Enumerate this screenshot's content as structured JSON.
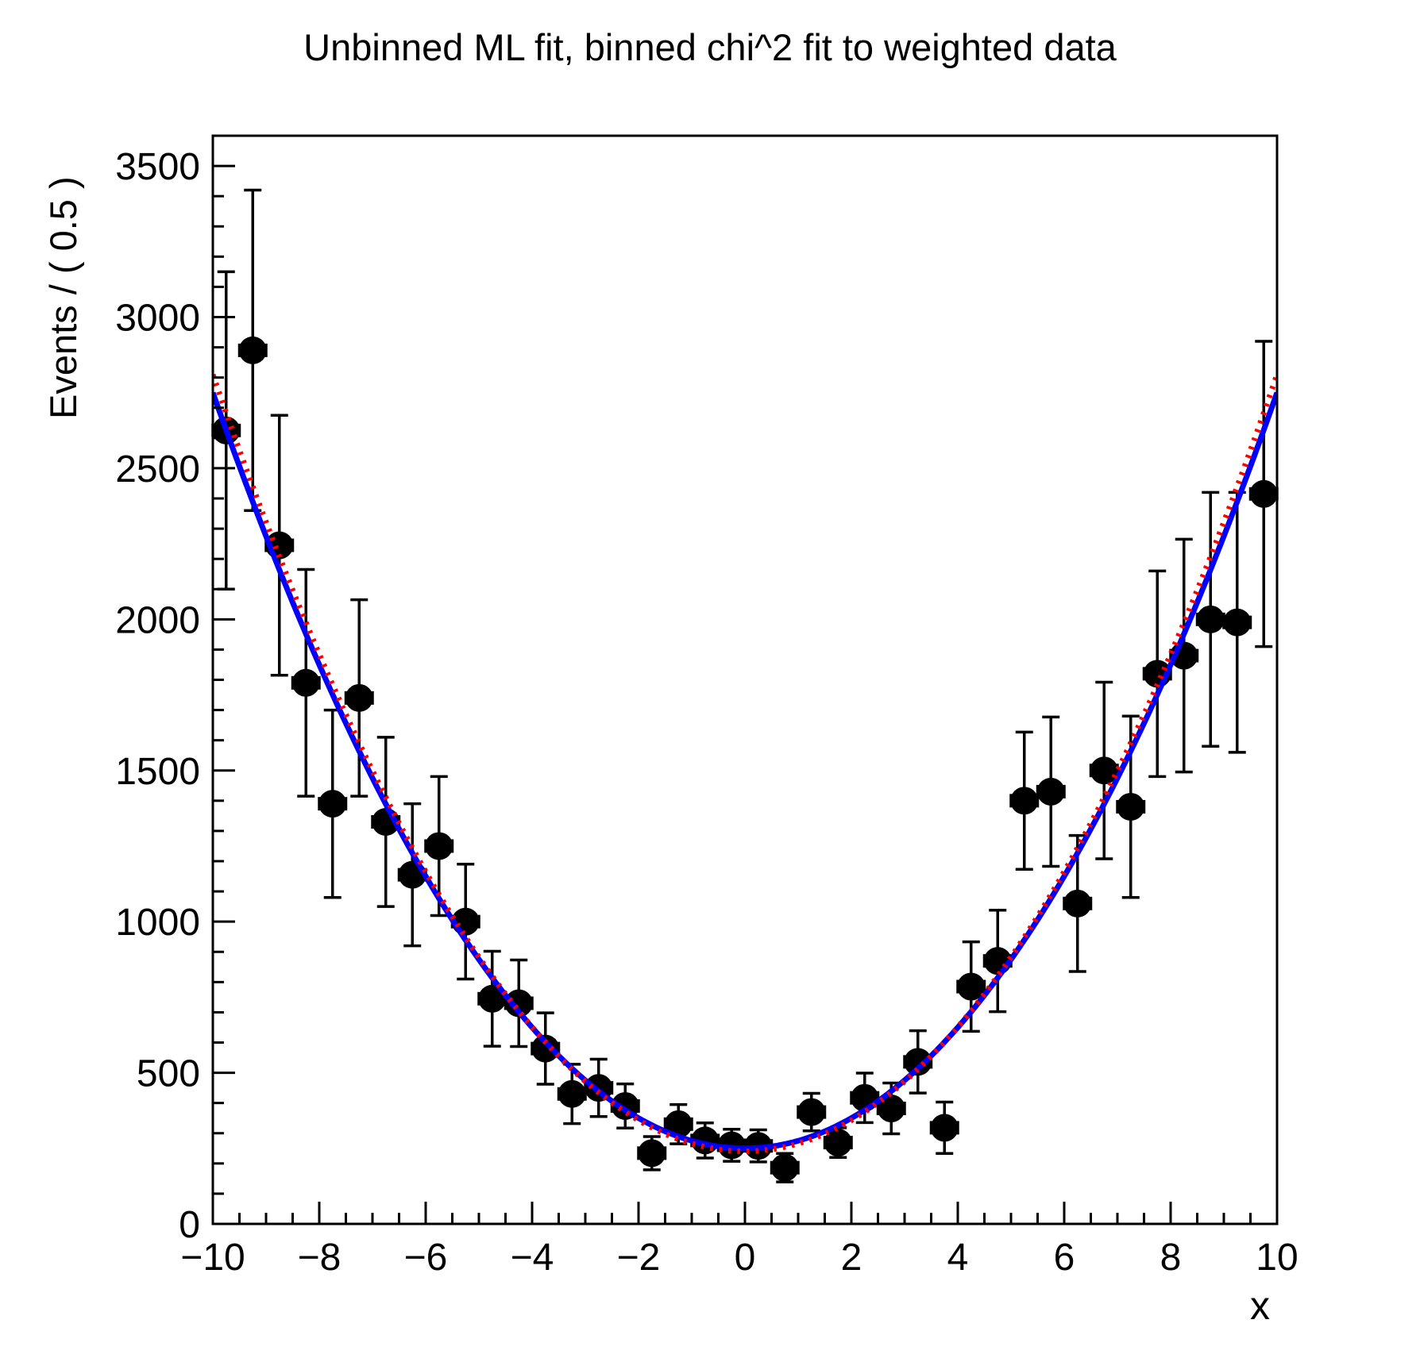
{
  "page": {
    "background": "#ffffff"
  },
  "chart_data": {
    "type": "scatter",
    "title": "Unbinned ML fit, binned chi^2 fit to weighted data",
    "xlabel": "x",
    "ylabel": "Events / ( 0.5 )",
    "xlim": [
      -10,
      10
    ],
    "ylim": [
      0,
      3600
    ],
    "grid": false,
    "legend": null,
    "bin_width": 0.5,
    "x_major_ticks": [
      -10,
      -8,
      -6,
      -4,
      -2,
      0,
      2,
      4,
      6,
      8,
      10
    ],
    "x_tick_labels": [
      "−10",
      "−8",
      "−6",
      "−4",
      "−2",
      "0",
      "2",
      "4",
      "6",
      "8",
      "10"
    ],
    "x_minor_step": 0.5,
    "y_major_ticks": [
      0,
      500,
      1000,
      1500,
      2000,
      2500,
      3000,
      3500
    ],
    "y_tick_labels": [
      "0",
      "500",
      "1000",
      "1500",
      "2000",
      "2500",
      "3000",
      "3500"
    ],
    "y_minor_step": 100,
    "marker_color": "#000000",
    "points": [
      {
        "x": -9.75,
        "y": 2625,
        "yerr": 525,
        "xerr": 0.25
      },
      {
        "x": -9.25,
        "y": 2890,
        "yerr": 530,
        "xerr": 0.25
      },
      {
        "x": -8.75,
        "y": 2245,
        "yerr": 430,
        "xerr": 0.25
      },
      {
        "x": -8.25,
        "y": 1790,
        "yerr": 375,
        "xerr": 0.25
      },
      {
        "x": -7.75,
        "y": 1390,
        "yerr": 310,
        "xerr": 0.25
      },
      {
        "x": -7.25,
        "y": 1740,
        "yerr": 325,
        "xerr": 0.25
      },
      {
        "x": -6.75,
        "y": 1330,
        "yerr": 280,
        "xerr": 0.25
      },
      {
        "x": -6.25,
        "y": 1155,
        "yerr": 235,
        "xerr": 0.25
      },
      {
        "x": -5.75,
        "y": 1250,
        "yerr": 230,
        "xerr": 0.25
      },
      {
        "x": -5.25,
        "y": 1000,
        "yerr": 190,
        "xerr": 0.25
      },
      {
        "x": -4.75,
        "y": 745,
        "yerr": 157,
        "xerr": 0.25
      },
      {
        "x": -4.25,
        "y": 730,
        "yerr": 143,
        "xerr": 0.25
      },
      {
        "x": -3.75,
        "y": 580,
        "yerr": 118,
        "xerr": 0.25
      },
      {
        "x": -3.25,
        "y": 430,
        "yerr": 98,
        "xerr": 0.25
      },
      {
        "x": -2.75,
        "y": 450,
        "yerr": 95,
        "xerr": 0.25
      },
      {
        "x": -2.25,
        "y": 390,
        "yerr": 73,
        "xerr": 0.25
      },
      {
        "x": -1.75,
        "y": 234,
        "yerr": 55,
        "xerr": 0.25
      },
      {
        "x": -1.25,
        "y": 330,
        "yerr": 65,
        "xerr": 0.25
      },
      {
        "x": -0.75,
        "y": 276,
        "yerr": 58,
        "xerr": 0.25
      },
      {
        "x": -0.25,
        "y": 260,
        "yerr": 53,
        "xerr": 0.25
      },
      {
        "x": 0.25,
        "y": 258,
        "yerr": 53,
        "xerr": 0.25
      },
      {
        "x": 0.75,
        "y": 186,
        "yerr": 47,
        "xerr": 0.25
      },
      {
        "x": 1.25,
        "y": 370,
        "yerr": 62,
        "xerr": 0.25
      },
      {
        "x": 1.75,
        "y": 269,
        "yerr": 49,
        "xerr": 0.25
      },
      {
        "x": 2.25,
        "y": 417,
        "yerr": 82,
        "xerr": 0.25
      },
      {
        "x": 2.75,
        "y": 382,
        "yerr": 84,
        "xerr": 0.25
      },
      {
        "x": 3.25,
        "y": 536,
        "yerr": 103,
        "xerr": 0.25
      },
      {
        "x": 3.75,
        "y": 318,
        "yerr": 85,
        "xerr": 0.25
      },
      {
        "x": 4.25,
        "y": 785,
        "yerr": 148,
        "xerr": 0.25
      },
      {
        "x": 4.75,
        "y": 870,
        "yerr": 168,
        "xerr": 0.25
      },
      {
        "x": 5.25,
        "y": 1400,
        "yerr": 227,
        "xerr": 0.25
      },
      {
        "x": 5.75,
        "y": 1430,
        "yerr": 247,
        "xerr": 0.25
      },
      {
        "x": 6.25,
        "y": 1060,
        "yerr": 225,
        "xerr": 0.25
      },
      {
        "x": 6.75,
        "y": 1500,
        "yerr": 292,
        "xerr": 0.25
      },
      {
        "x": 7.25,
        "y": 1380,
        "yerr": 300,
        "xerr": 0.25
      },
      {
        "x": 7.75,
        "y": 1820,
        "yerr": 340,
        "xerr": 0.25
      },
      {
        "x": 8.25,
        "y": 1880,
        "yerr": 385,
        "xerr": 0.25
      },
      {
        "x": 8.75,
        "y": 2000,
        "yerr": 420,
        "xerr": 0.25
      },
      {
        "x": 9.25,
        "y": 1990,
        "yerr": 430,
        "xerr": 0.25
      },
      {
        "x": 9.75,
        "y": 2415,
        "yerr": 505,
        "xerr": 0.25
      }
    ],
    "curves": [
      {
        "name": "unbinned-ml-fit",
        "color": "#0000ff",
        "style": "solid",
        "model": "a+b*x^2",
        "a": 250,
        "b": 25.0
      },
      {
        "name": "binned-chi2-fit",
        "color": "#ff0000",
        "style": "dotted",
        "model": "a+b*x^2",
        "a": 240,
        "b": 25.7
      }
    ]
  }
}
